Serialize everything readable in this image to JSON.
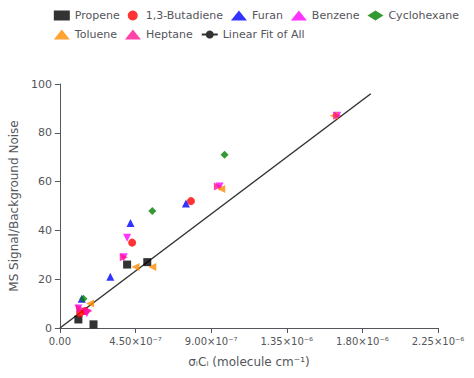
{
  "chart_data": {
    "type": "scatter",
    "xlabel": "σᵢCᵢ (molecule cm⁻¹)",
    "ylabel": "MS Signal/Background Noise",
    "xlim": [
      0,
      2.25e-06
    ],
    "ylim": [
      0,
      100
    ],
    "xticks": [
      {
        "value": 0,
        "label": "0.00"
      },
      {
        "value": 4.5e-07,
        "label": "4.50×10⁻⁷"
      },
      {
        "value": 9e-07,
        "label": "9.00×10⁻⁷"
      },
      {
        "value": 1.35e-06,
        "label": "1.35×10⁻⁶"
      },
      {
        "value": 1.8e-06,
        "label": "1.80×10⁻⁶"
      },
      {
        "value": 2.25e-06,
        "label": "2.25×10⁻⁶"
      }
    ],
    "yticks": [
      0,
      20,
      40,
      60,
      80,
      100
    ],
    "grid": false,
    "legend": "upper right",
    "series": [
      {
        "name": "Propene",
        "type": "scatter",
        "color": "#000000",
        "marker": "square",
        "x": [
          1.1e-07,
          2e-07,
          4e-07,
          5.2e-07
        ],
        "values": [
          3.5,
          1.5,
          26,
          27
        ]
      },
      {
        "name": "1,3-Butadiene",
        "type": "scatter",
        "color": "#ff0000",
        "marker": "circle",
        "x": [
          1.2e-07,
          1.5e-07,
          4.3e-07,
          7.8e-07
        ],
        "values": [
          6,
          7,
          35,
          52
        ]
      },
      {
        "name": "Furan",
        "type": "scatter",
        "color": "#0000ff",
        "marker": "triangle-up",
        "x": [
          1.3e-07,
          3e-07,
          4.2e-07,
          7.5e-07
        ],
        "values": [
          12,
          21,
          43,
          51
        ]
      },
      {
        "name": "Benzene",
        "type": "scatter",
        "color": "#ff00ff",
        "marker": "triangle-down",
        "x": [
          1.1e-07,
          1.6e-07,
          3.8e-07,
          4e-07,
          9.5e-07,
          1.65e-06
        ],
        "values": [
          8,
          6,
          29,
          37,
          58,
          87
        ]
      },
      {
        "name": "Cyclohexane",
        "type": "scatter",
        "color": "#008000",
        "marker": "diamond",
        "x": [
          1.4e-07,
          5.5e-07,
          9.8e-07
        ],
        "values": [
          12,
          48,
          71
        ]
      },
      {
        "name": "Toluene",
        "type": "scatter",
        "color": "#ff8c00",
        "marker": "triangle-left",
        "x": [
          1.8e-07,
          4.5e-07,
          5.5e-07,
          9.6e-07,
          1.63e-06
        ],
        "values": [
          10,
          25,
          25,
          57,
          87
        ]
      },
      {
        "name": "Heptane",
        "type": "scatter",
        "color": "#ff1493",
        "marker": "triangle-right",
        "x": [
          1.2e-07,
          1.7e-07,
          3.8e-07,
          9.4e-07,
          1.65e-06
        ],
        "values": [
          8,
          7,
          29,
          58,
          87
        ]
      },
      {
        "name": "Linear Fit of All",
        "type": "line",
        "color": "#333333",
        "line_style": "solid",
        "x": [
          0.0,
          1.85e-06
        ],
        "values": [
          0.0,
          96.0
        ]
      }
    ]
  }
}
